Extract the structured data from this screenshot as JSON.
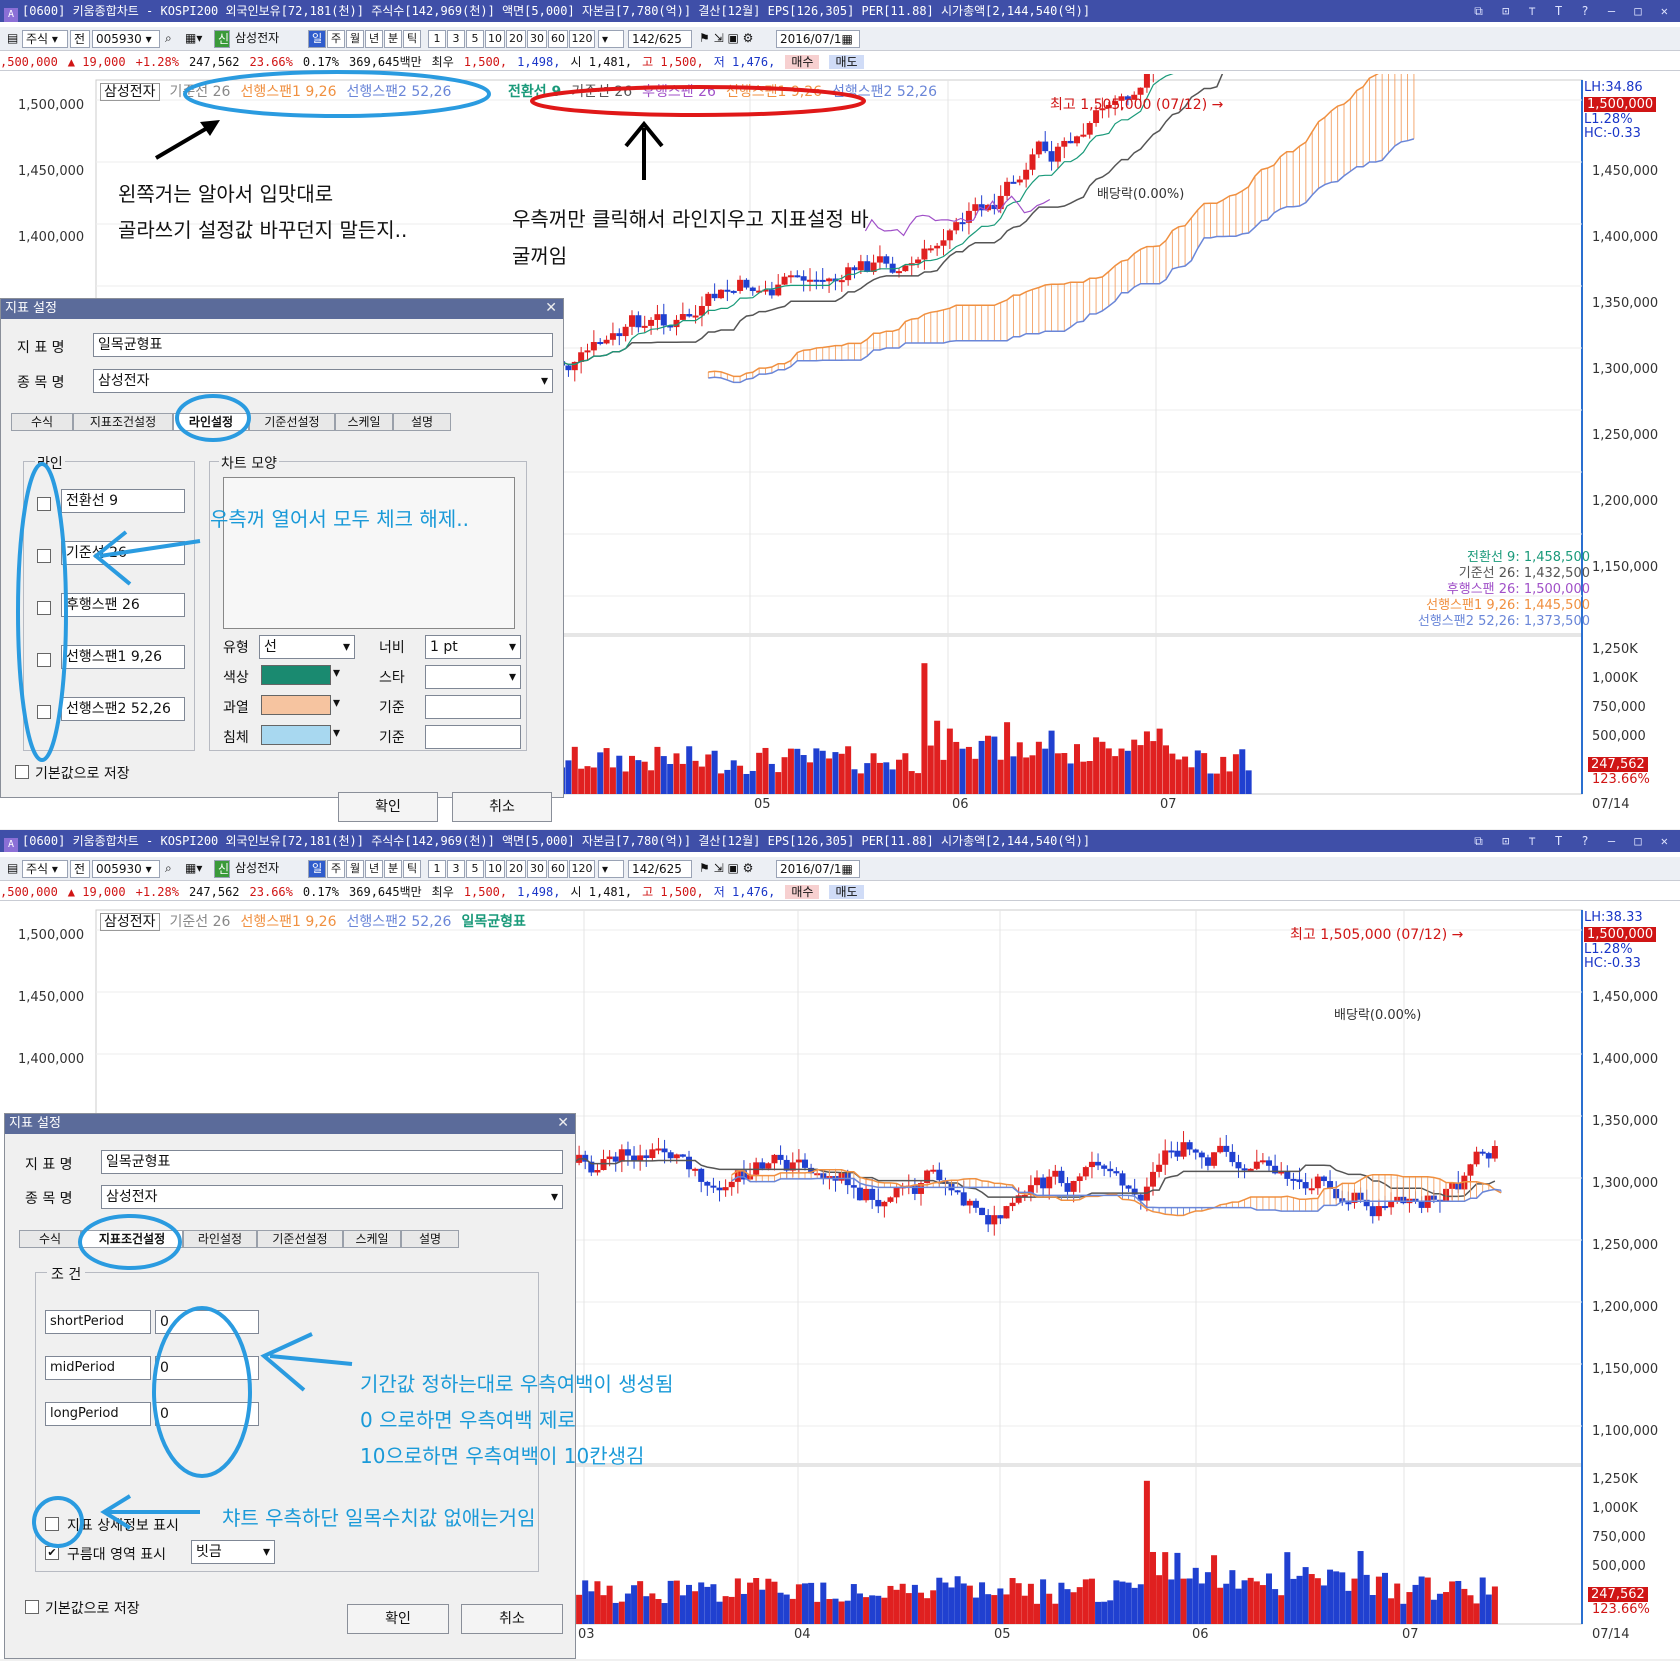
{
  "colors": {
    "title_bar": "#3f4fa8",
    "rise": "#e02020",
    "fall": "#2040d0",
    "annotation": "#1a9ad8",
    "highlight": "#2a9be0",
    "circle_red": "#e01818",
    "tenkan": "#1a9a7a",
    "kijun": "#555555",
    "chikou": "#a050c8",
    "senkou1": "#f09040",
    "senkou2": "#6a86d8"
  },
  "title": "[0600] 키움종합차트 - KOSPI200 외국인보유[72,181(천)] 주식수[142,969(천)] 액면[5,000] 자본금[7,780(억)] 결산[12월] EPS[126,305] PER[11.88] 시가총액[2,144,540(억)]",
  "toolbar": {
    "market": "주식",
    "qty": "전",
    "code": "005930",
    "stock_badge": "신",
    "stock_name": "삼성전자",
    "periods": [
      "일",
      "주",
      "월",
      "년",
      "분",
      "틱"
    ],
    "nums": [
      "1",
      "3",
      "5",
      "10",
      "20",
      "30",
      "60",
      "120"
    ],
    "count": "142/625",
    "date": "2016/07/1",
    "buy": "매수",
    "sell": "매도"
  },
  "quote": {
    "price": ",500,000",
    "change": "▲ 19,000",
    "rate": "+1.28%",
    "volume": "247,562",
    "vol_rate": "23.66%",
    "turnover": "0.17%",
    "amount": "369,645백만",
    "hl_label": "최우",
    "best_ask": "1,500,",
    "best_bid": "1,498,",
    "open": "시 1,481,",
    "high": "고 1,500,",
    "low": "저 1,476,"
  },
  "top": {
    "legend": {
      "name": "삼성전자",
      "items": [
        {
          "text": "기준선 26",
          "color": "#888888"
        },
        {
          "text": "선행스팬1 9,26",
          "color": "#f09040"
        },
        {
          "text": "선행스팬2 52,26",
          "color": "#6a86d8"
        }
      ],
      "items2": [
        {
          "text": "전환선 9",
          "color": "#1a9a7a"
        },
        {
          "text": "기준선 26",
          "color": "#555555"
        },
        {
          "text": "후행스팬 26",
          "color": "#a050c8"
        },
        {
          "text": "선행스팬1 9,26",
          "color": "#f09040"
        },
        {
          "text": "선행스팬2 52,26",
          "color": "#6a86d8"
        }
      ]
    },
    "price_axis": [
      "1,500,000",
      "1,450,000",
      "1,400,000",
      "1,350,000",
      "1,300,000",
      "1,250,000",
      "1,200,000",
      "1,150,000"
    ],
    "vol_axis": [
      "1,250K",
      "1,000K",
      "750,000",
      "500,000"
    ],
    "right_tags": {
      "lh": "LH:34.86",
      "price": "1,500,000",
      "l": "L1.28%",
      "hc": "HC:-0.33",
      "vol": "247,562",
      "vol_rate": "123.66%"
    },
    "date_axis": [
      "05",
      "06",
      "07"
    ],
    "date_end": "07/14",
    "max_label": "최고 1,505,000 (07/12) →",
    "dividend": "배당락(0.00%)",
    "indicator_values": [
      {
        "text": "전환선 9: 1,458,500",
        "color": "#1a9a7a"
      },
      {
        "text": "기준선 26: 1,432,500",
        "color": "#555555"
      },
      {
        "text": "후행스팬 26: 1,500,000",
        "color": "#a050c8"
      },
      {
        "text": "선행스팬1 9,26: 1,445,500",
        "color": "#f09040"
      },
      {
        "text": "선행스팬2 52,26: 1,373,500",
        "color": "#6a86d8"
      }
    ],
    "notes": {
      "left1": "왼쪽거는 알아서 입맛대로",
      "left2": "골라쓰기 설정값 바꾸던지 말든지..",
      "right1": "우측꺼만 클릭해서 라인지우고 지표설정 바",
      "right2": "굴꺼임",
      "check": "우측꺼 열어서 모두 체크 해제.."
    },
    "dialog": {
      "title": "지표 설정",
      "name_label": "지 표 명",
      "name_value": "일목균형표",
      "stock_label": "종 목 명",
      "stock_value": "삼성전자",
      "tabs": [
        "수식",
        "지표조건설정",
        "라인설정",
        "기준선설정",
        "스케일",
        "설명"
      ],
      "line_group": "라인",
      "lines": [
        "전환선 9",
        "기준선 26",
        "후행스팬 26",
        "선행스팬1 9,26",
        "선행스팬2 52,26"
      ],
      "shape_group": "차트 모양",
      "type_label": "유형",
      "type_value": "선",
      "color_label": "색상",
      "width_label": "너비",
      "width_value": "1 pt",
      "style_label": "스타",
      "over_label": "과열",
      "ref_label": "기준",
      "under_label": "침체",
      "save_label": "기본값으로 저장",
      "ok": "확인",
      "cancel": "취소"
    }
  },
  "bottom": {
    "legend": {
      "name": "삼성전자",
      "items": [
        {
          "text": "기준선 26",
          "color": "#888888"
        },
        {
          "text": "선행스팬1 9,26",
          "color": "#f09040"
        },
        {
          "text": "선행스팬2 52,26",
          "color": "#6a86d8"
        }
      ],
      "active": "일목균형표"
    },
    "price_axis": [
      "1,500,000",
      "1,450,000",
      "1,400,000",
      "1,350,000",
      "1,300,000",
      "1,250,000",
      "1,200,000",
      "1,150,000",
      "1,100,000"
    ],
    "vol_axis": [
      "1,250K",
      "1,000K",
      "750,000",
      "500,000"
    ],
    "right_tags": {
      "lh": "LH:38.33",
      "price": "1,500,000",
      "l": "L1.28%",
      "hc": "HC:-0.33",
      "vol": "247,562",
      "vol_rate": "123.66%"
    },
    "date_axis": [
      "03",
      "04",
      "05",
      "06",
      "07"
    ],
    "date_end": "07/14",
    "max_label": "최고 1,505,000 (07/12) →",
    "dividend": "배당락(0.00%)",
    "notes": {
      "period": "기간값 정하는대로 우측여백이 생성됨",
      "zero": "0 으로하면  우측여백 제로",
      "ten": "10으로하면 우측여백이 10칸생김",
      "detail": "챠트 우측하단 일목수치값 없애는거임"
    },
    "dialog": {
      "title": "지표 설정",
      "name_label": "지 표 명",
      "name_value": "일목균형표",
      "stock_label": "종 목 명",
      "stock_value": "삼성전자",
      "tabs": [
        "수식",
        "지표조건설정",
        "라인설정",
        "기준선설정",
        "스케일",
        "설명"
      ],
      "cond_group": "조 건",
      "params": [
        {
          "name": "shortPeriod",
          "value": "0"
        },
        {
          "name": "midPeriod",
          "value": "0"
        },
        {
          "name": "longPeriod",
          "value": "0"
        }
      ],
      "detail_label": "지표 상세정보 표시",
      "cloud_label": "구름대 영역 표시",
      "cloud_value": "빗금",
      "save_label": "기본값으로 저장",
      "ok": "확인",
      "cancel": "취소"
    }
  }
}
